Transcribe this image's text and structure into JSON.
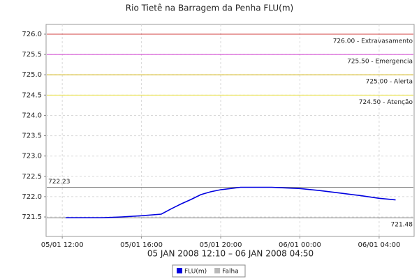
{
  "chart_data": {
    "type": "line",
    "title": "Rio Tietê na Barragem da Penha FLU(m)",
    "subtitle": "05 JAN 2008 12:10 – 06 JAN 2008 04:50",
    "x": [
      "2008-01-05T12:10",
      "2008-01-05T14:00",
      "2008-01-05T15:00",
      "2008-01-05T16:00",
      "2008-01-05T17:00",
      "2008-01-05T17:30",
      "2008-01-05T18:00",
      "2008-01-05T18:30",
      "2008-01-05T19:00",
      "2008-01-05T19:30",
      "2008-01-05T20:00",
      "2008-01-05T20:30",
      "2008-01-05T21:00",
      "2008-01-05T22:00",
      "2008-01-05T22:35",
      "2008-01-05T23:00",
      "2008-01-06T00:00",
      "2008-01-06T01:00",
      "2008-01-06T02:00",
      "2008-01-06T03:00",
      "2008-01-06T04:00",
      "2008-01-06T04:50"
    ],
    "series": [
      {
        "name": "FLU(m)",
        "color": "#0000e0",
        "values": [
          721.48,
          721.48,
          721.5,
          721.53,
          721.57,
          721.7,
          721.82,
          721.93,
          722.05,
          722.12,
          722.17,
          722.2,
          722.23,
          722.23,
          722.23,
          722.22,
          722.2,
          722.15,
          722.09,
          722.03,
          721.96,
          721.92
        ]
      },
      {
        "name": "Falha",
        "color": "#b8b8b8",
        "values": [
          null,
          null,
          null,
          null,
          null,
          null,
          null,
          null,
          null,
          null,
          null,
          null,
          null,
          null,
          null,
          null,
          null,
          null,
          null,
          null,
          null,
          null
        ]
      }
    ],
    "xlim": [
      "2008-01-05T11:11",
      "2008-01-06T05:46"
    ],
    "xticks": [
      {
        "value": "2008-01-05T12:00",
        "label": "05/01 12:00"
      },
      {
        "value": "2008-01-05T16:00",
        "label": "05/01 16:00"
      },
      {
        "value": "2008-01-05T20:00",
        "label": "05/01 20:00"
      },
      {
        "value": "2008-01-06T00:00",
        "label": "06/01 00:00"
      },
      {
        "value": "2008-01-06T04:00",
        "label": "06/01 04:00"
      }
    ],
    "ylim": [
      721.02,
      726.24
    ],
    "yticks": [
      721.5,
      {
        "value": 722,
        "label": "722.0"
      },
      722.5,
      {
        "value": 723,
        "label": "723.0"
      },
      723.5,
      {
        "value": 724,
        "label": "724.0"
      },
      724.5,
      {
        "value": 725,
        "label": "725.0"
      },
      725.5,
      {
        "value": 726,
        "label": "726.0"
      }
    ],
    "markers": [
      {
        "value": 726,
        "label": "726.00 - Extravasamento",
        "color": "#d04040"
      },
      {
        "value": 725.5,
        "label": "725.50 - Emergencia",
        "color": "#d040d0"
      },
      {
        "value": 725,
        "label": "725.00 - Alerta",
        "color": "#d0b000"
      },
      {
        "value": 724.5,
        "label": "724.50 - Atenção",
        "color": "#e8e040"
      },
      {
        "value": 722.23,
        "label": "722.23",
        "color": "#808080"
      },
      {
        "value": 721.48,
        "label": "721.48",
        "color": "#808080"
      }
    ],
    "grid": true
  }
}
